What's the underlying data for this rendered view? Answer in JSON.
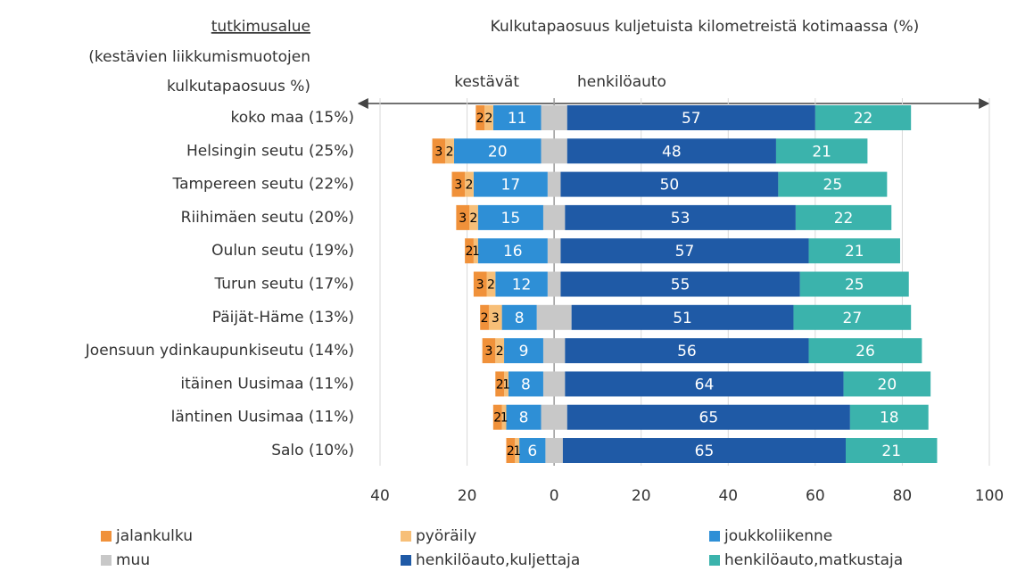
{
  "chart_data": {
    "type": "diverging_stacked_bar",
    "title": "Kulkutapaosuus kuljetuista kilometreistä kotimaassa (%)",
    "y_axis_label": [
      "tutkimusalue",
      "(kestävien liikkumismuotojen",
      "kulkutapaosuus %)"
    ],
    "annotations": [
      "kestävät",
      "henkilöauto"
    ],
    "categories": [
      "koko maa (15%)",
      "Helsingin seutu (25%)",
      "Tampereen seutu (22%)",
      "Riihimäen seutu (20%)",
      "Oulun seutu (19%)",
      "Turun seutu (17%)",
      "Päijät-Häme (13%)",
      "Joensuun ydinkaupunkiseutu (14%)",
      "itäinen Uusimaa (11%)",
      "läntinen Uusimaa (11%)",
      "Salo (10%)"
    ],
    "series": [
      {
        "name": "jalankulku",
        "color": "#f0913a",
        "values": [
          2,
          3,
          3,
          3,
          2,
          3,
          2,
          3,
          2,
          2,
          2
        ]
      },
      {
        "name": "pyöräily",
        "color": "#f7bf78",
        "values": [
          2,
          2,
          2,
          2,
          1,
          2,
          3,
          2,
          1,
          1,
          1
        ]
      },
      {
        "name": "joukkoliikenne",
        "color": "#2e8fd6",
        "values": [
          11,
          20,
          17,
          15,
          16,
          12,
          8,
          9,
          8,
          8,
          6
        ]
      },
      {
        "name": "muu",
        "color": "#c8c8c8",
        "values": [
          6,
          6,
          3,
          5,
          3,
          3,
          8,
          5,
          5,
          6,
          4
        ]
      },
      {
        "name": "henkilöauto,kuljettaja",
        "color": "#1f5aa6",
        "values": [
          57,
          48,
          50,
          53,
          57,
          55,
          51,
          56,
          64,
          65,
          65
        ]
      },
      {
        "name": "henkilöauto,matkustaja",
        "color": "#3bb3ac",
        "values": [
          22,
          21,
          25,
          22,
          21,
          25,
          27,
          26,
          20,
          18,
          21
        ]
      }
    ],
    "xlim": [
      -40,
      100
    ],
    "xticks": [
      {
        "value": -40,
        "label": "40"
      },
      {
        "value": -20,
        "label": "20"
      },
      0,
      20,
      40,
      60,
      80,
      100
    ],
    "grid": true
  }
}
